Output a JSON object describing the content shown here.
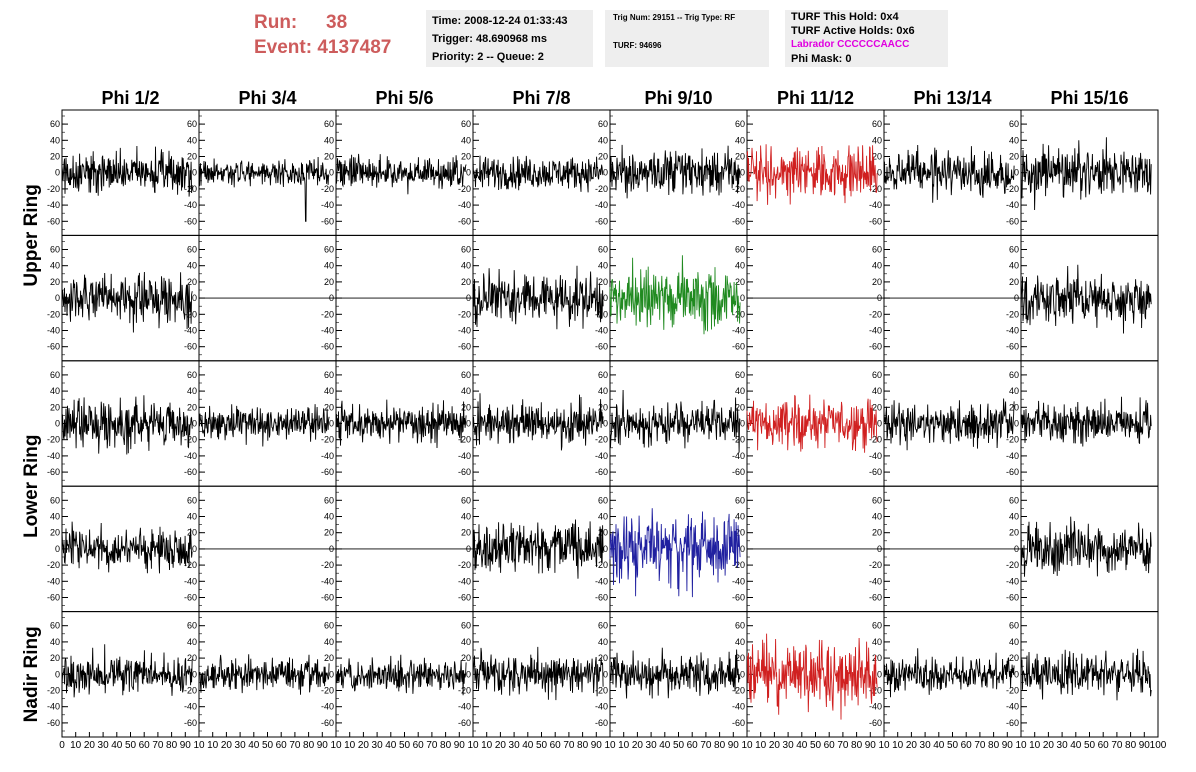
{
  "header": {
    "run_label": "Run:",
    "run_value": "38",
    "event_label": "Event:",
    "event_value": "4137487",
    "time_line": "Time: 2008-12-24 01:33:43",
    "trigger_line": "Trigger: 48.690968 ms",
    "priority_line": "Priority: 2 -- Queue: 2",
    "trig_line": "Trig Num: 29151 -- Trig Type: RF",
    "turf_line": "TURF: 94696",
    "turf_this_hold": "TURF This Hold: 0x4",
    "turf_active_holds": "TURF Active Holds: 0x6",
    "labrador": "Labrador CCCCCCAACC",
    "phi_mask": "Phi Mask: 0"
  },
  "colors": {
    "run": "#cd5c5c",
    "labrador": "#e000e0",
    "trace_default": "#000000",
    "trace_red": "#d02020",
    "trace_green": "#208a20",
    "trace_blue": "#2020a0"
  },
  "chart_data": {
    "type": "line",
    "title": "",
    "columns": [
      "Phi 1/2",
      "Phi 3/4",
      "Phi 5/6",
      "Phi 7/8",
      "Phi 9/10",
      "Phi 11/12",
      "Phi 13/14",
      "Phi 15/16"
    ],
    "row_groups": [
      {
        "label": "Upper Ring",
        "rows": [
          0,
          1
        ]
      },
      {
        "label": "Lower Ring",
        "rows": [
          2,
          3
        ]
      },
      {
        "label": "Nadir Ring",
        "rows": [
          4
        ]
      }
    ],
    "xlim": [
      0,
      100
    ],
    "x_ticks": [
      "0",
      "10",
      "20",
      "30",
      "40",
      "50",
      "60",
      "70",
      "80",
      "90",
      "100"
    ],
    "ylim": [
      -70,
      70
    ],
    "y_ticks": [
      60,
      40,
      20,
      0,
      -20,
      -40,
      -60
    ],
    "grid": false,
    "panels": [
      {
        "row": 0,
        "col": 0,
        "trace": "noise",
        "color": "#000000",
        "amp": 13
      },
      {
        "row": 0,
        "col": 1,
        "trace": "noise",
        "color": "#000000",
        "amp": 8,
        "spike": [
          78,
          -60
        ]
      },
      {
        "row": 0,
        "col": 2,
        "trace": "noise",
        "color": "#000000",
        "amp": 10
      },
      {
        "row": 0,
        "col": 3,
        "trace": "noise",
        "color": "#000000",
        "amp": 10
      },
      {
        "row": 0,
        "col": 4,
        "trace": "noise",
        "color": "#000000",
        "amp": 14
      },
      {
        "row": 0,
        "col": 5,
        "trace": "noise",
        "color": "#d02020",
        "amp": 17
      },
      {
        "row": 0,
        "col": 6,
        "trace": "noise",
        "color": "#000000",
        "amp": 13
      },
      {
        "row": 0,
        "col": 7,
        "trace": "noise",
        "color": "#000000",
        "amp": 15
      },
      {
        "row": 1,
        "col": 0,
        "trace": "noise",
        "color": "#000000",
        "amp": 14
      },
      {
        "row": 1,
        "col": 1,
        "trace": "flat",
        "color": "#000000",
        "amp": 0
      },
      {
        "row": 1,
        "col": 2,
        "trace": "flat",
        "color": "#000000",
        "amp": 0
      },
      {
        "row": 1,
        "col": 3,
        "trace": "noise",
        "color": "#000000",
        "amp": 16
      },
      {
        "row": 1,
        "col": 4,
        "trace": "noise",
        "color": "#208a20",
        "amp": 18
      },
      {
        "row": 1,
        "col": 5,
        "trace": "flat",
        "color": "#000000",
        "amp": 0
      },
      {
        "row": 1,
        "col": 6,
        "trace": "flat",
        "color": "#000000",
        "amp": 0
      },
      {
        "row": 1,
        "col": 7,
        "trace": "noise",
        "color": "#000000",
        "amp": 15
      },
      {
        "row": 2,
        "col": 0,
        "trace": "noise",
        "color": "#000000",
        "amp": 14
      },
      {
        "row": 2,
        "col": 1,
        "trace": "noise",
        "color": "#000000",
        "amp": 10
      },
      {
        "row": 2,
        "col": 2,
        "trace": "noise",
        "color": "#000000",
        "amp": 12
      },
      {
        "row": 2,
        "col": 3,
        "trace": "noise",
        "color": "#000000",
        "amp": 13
      },
      {
        "row": 2,
        "col": 4,
        "trace": "noise",
        "color": "#000000",
        "amp": 13
      },
      {
        "row": 2,
        "col": 5,
        "trace": "noise",
        "color": "#d02020",
        "amp": 15
      },
      {
        "row": 2,
        "col": 6,
        "trace": "noise",
        "color": "#000000",
        "amp": 13
      },
      {
        "row": 2,
        "col": 7,
        "trace": "noise",
        "color": "#000000",
        "amp": 13
      },
      {
        "row": 3,
        "col": 0,
        "trace": "noise",
        "color": "#000000",
        "amp": 12
      },
      {
        "row": 3,
        "col": 1,
        "trace": "flat",
        "color": "#000000",
        "amp": 0
      },
      {
        "row": 3,
        "col": 2,
        "trace": "flat",
        "color": "#000000",
        "amp": 0
      },
      {
        "row": 3,
        "col": 3,
        "trace": "noise",
        "color": "#000000",
        "amp": 16
      },
      {
        "row": 3,
        "col": 4,
        "trace": "noise",
        "color": "#2020a0",
        "amp": 22
      },
      {
        "row": 3,
        "col": 5,
        "trace": "flat",
        "color": "#000000",
        "amp": 0
      },
      {
        "row": 3,
        "col": 6,
        "trace": "flat",
        "color": "#000000",
        "amp": 0
      },
      {
        "row": 3,
        "col": 7,
        "trace": "noise",
        "color": "#000000",
        "amp": 15
      },
      {
        "row": 4,
        "col": 0,
        "trace": "noise",
        "color": "#000000",
        "amp": 12
      },
      {
        "row": 4,
        "col": 1,
        "trace": "noise",
        "color": "#000000",
        "amp": 10
      },
      {
        "row": 4,
        "col": 2,
        "trace": "noise",
        "color": "#000000",
        "amp": 10
      },
      {
        "row": 4,
        "col": 3,
        "trace": "noise",
        "color": "#000000",
        "amp": 12
      },
      {
        "row": 4,
        "col": 4,
        "trace": "noise",
        "color": "#000000",
        "amp": 12
      },
      {
        "row": 4,
        "col": 5,
        "trace": "noise",
        "color": "#d02020",
        "amp": 20
      },
      {
        "row": 4,
        "col": 6,
        "trace": "noise",
        "color": "#000000",
        "amp": 12
      },
      {
        "row": 4,
        "col": 7,
        "trace": "noise",
        "color": "#000000",
        "amp": 13
      }
    ]
  }
}
